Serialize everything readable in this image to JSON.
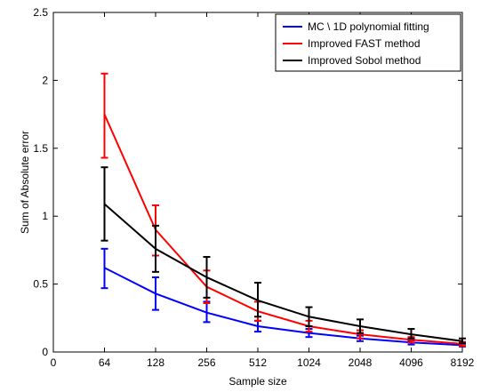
{
  "chart_data": {
    "type": "line",
    "title": "",
    "xlabel": "Sample size",
    "ylabel": "Sum of Absolute error",
    "x_ticks": [
      "0",
      "64",
      "128",
      "256",
      "512",
      "1024",
      "2048",
      "4096",
      "8192"
    ],
    "y_ticks": [
      "0",
      "0.5",
      "1",
      "1.5",
      "2",
      "2.5"
    ],
    "ylim": [
      0,
      2.5
    ],
    "grid": false,
    "legend_position": "top-right",
    "categories": [
      "64",
      "128",
      "256",
      "512",
      "1024",
      "2048",
      "4096",
      "8192"
    ],
    "series": [
      {
        "name": "MC \\ 1D polynomial fitting",
        "color": "#0000ff",
        "values": [
          0.62,
          0.43,
          0.29,
          0.19,
          0.14,
          0.1,
          0.07,
          0.05
        ],
        "err_low": [
          0.47,
          0.31,
          0.22,
          0.15,
          0.11,
          0.08,
          0.055,
          0.04
        ],
        "err_high": [
          0.76,
          0.55,
          0.37,
          0.23,
          0.17,
          0.12,
          0.085,
          0.06
        ]
      },
      {
        "name": "Improved FAST method",
        "color": "#ff0000",
        "values": [
          1.75,
          0.9,
          0.48,
          0.3,
          0.19,
          0.13,
          0.09,
          0.06
        ],
        "err_low": [
          1.43,
          0.71,
          0.36,
          0.23,
          0.15,
          0.1,
          0.07,
          0.045
        ],
        "err_high": [
          2.05,
          1.08,
          0.6,
          0.37,
          0.23,
          0.16,
          0.11,
          0.075
        ]
      },
      {
        "name": "Improved Sobol method",
        "color": "#000000",
        "values": [
          1.09,
          0.76,
          0.55,
          0.38,
          0.26,
          0.19,
          0.13,
          0.08
        ],
        "err_low": [
          0.82,
          0.59,
          0.4,
          0.26,
          0.19,
          0.14,
          0.1,
          0.065
        ],
        "err_high": [
          1.36,
          0.93,
          0.7,
          0.51,
          0.33,
          0.24,
          0.17,
          0.1
        ]
      }
    ]
  }
}
